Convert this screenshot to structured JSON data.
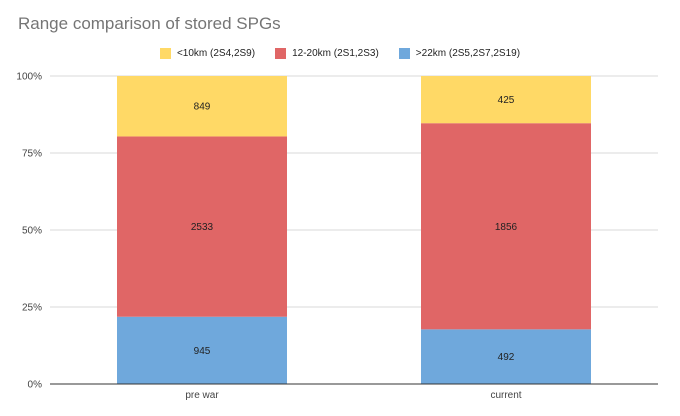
{
  "chart_data": {
    "type": "bar",
    "stacked": "percent",
    "title": "Range comparison of stored SPGs",
    "categories": [
      "pre war",
      "current"
    ],
    "series": [
      {
        "name": ">22km (2S5,2S7,2S19)",
        "values": [
          945,
          492
        ],
        "color": "#6fa8dc"
      },
      {
        "name": "12-20km (2S1,2S3)",
        "values": [
          2533,
          1856
        ],
        "color": "#e06666"
      },
      {
        "name": "<10km (2S4,2S9)",
        "values": [
          849,
          425
        ],
        "color": "#ffd966"
      }
    ],
    "legend_order": [
      2,
      1,
      0
    ],
    "legend_position": "top",
    "y_ticks": [
      "0%",
      "25%",
      "50%",
      "75%",
      "100%"
    ],
    "ylim": [
      0,
      100
    ],
    "grid": true
  }
}
